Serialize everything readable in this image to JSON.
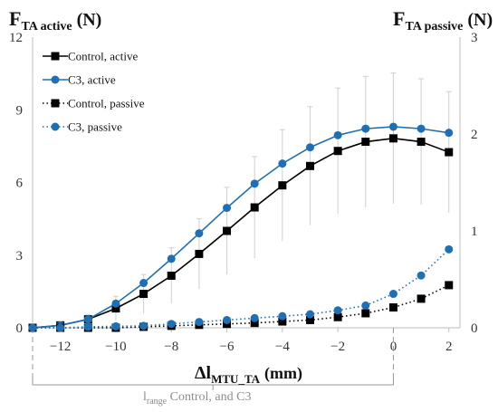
{
  "chart_data": {
    "type": "line",
    "title_left": {
      "main": "F",
      "sub": "TA active",
      "unit": "(N)"
    },
    "title_right": {
      "main": "F",
      "sub": "TA passive",
      "unit": "(N)"
    },
    "xlabel": {
      "main": "Δl",
      "sub": "MTU_TA",
      "unit": "(mm)"
    },
    "x_ticks": [
      "−12",
      "−10",
      "−8",
      "−6",
      "−4",
      "−2",
      "0",
      "2"
    ],
    "x_tick_values": [
      -12,
      -10,
      -8,
      -6,
      -4,
      -2,
      0,
      2
    ],
    "xlim": [
      -13,
      2.4
    ],
    "y_left_ticks": [
      "0",
      "3",
      "6",
      "9",
      "12"
    ],
    "y_left_tick_values": [
      0,
      3,
      6,
      9,
      12
    ],
    "ylim_left": [
      0,
      12
    ],
    "y_right_ticks": [
      "0",
      "1",
      "2",
      "3"
    ],
    "y_right_tick_values": [
      0,
      1,
      2,
      3
    ],
    "ylim_right": [
      0,
      3
    ],
    "grid": false,
    "legend_position": "top-left",
    "range_annotation": {
      "main": "l",
      "sub": "range",
      "rest": " Control, and C3",
      "from": -13,
      "to": 0
    },
    "x": [
      -13,
      -12,
      -11,
      -10,
      -9,
      -8,
      -7,
      -6,
      -5,
      -4,
      -3,
      -2,
      -1,
      0,
      1,
      2
    ],
    "series": [
      {
        "name": "Control, active",
        "axis": "left",
        "marker": "square",
        "line": "solid",
        "color": "#000000",
        "values": [
          0.0,
          0.1,
          0.35,
          0.8,
          1.4,
          2.15,
          3.05,
          4.0,
          4.97,
          5.88,
          6.68,
          7.3,
          7.68,
          7.82,
          7.68,
          7.25
        ],
        "error": [
          0.0,
          0.05,
          0.2,
          0.5,
          0.8,
          1.15,
          1.45,
          1.8,
          2.1,
          2.3,
          2.45,
          2.6,
          2.7,
          2.7,
          2.6,
          2.5
        ]
      },
      {
        "name": "C3, active",
        "axis": "left",
        "marker": "circle",
        "line": "solid",
        "color": "#1f6fb5",
        "values": [
          0.0,
          0.1,
          0.35,
          1.0,
          1.85,
          2.85,
          3.9,
          4.95,
          5.95,
          6.78,
          7.45,
          7.95,
          8.22,
          8.3,
          8.22,
          8.05
        ],
        "error": []
      },
      {
        "name": "Control, passive",
        "axis": "right",
        "marker": "square",
        "line": "dotted",
        "color": "#000000",
        "values": [
          0.0,
          0.0,
          0.0,
          0.0,
          0.01,
          0.02,
          0.03,
          0.04,
          0.05,
          0.065,
          0.08,
          0.11,
          0.15,
          0.21,
          0.3,
          0.44
        ],
        "error": []
      },
      {
        "name": "C3, passive",
        "axis": "right",
        "marker": "circle",
        "line": "dotted",
        "color": "#1f6fb5",
        "values": [
          0.0,
          0.0,
          0.01,
          0.015,
          0.02,
          0.04,
          0.06,
          0.08,
          0.1,
          0.12,
          0.14,
          0.18,
          0.23,
          0.35,
          0.54,
          0.81
        ],
        "error": []
      }
    ]
  }
}
